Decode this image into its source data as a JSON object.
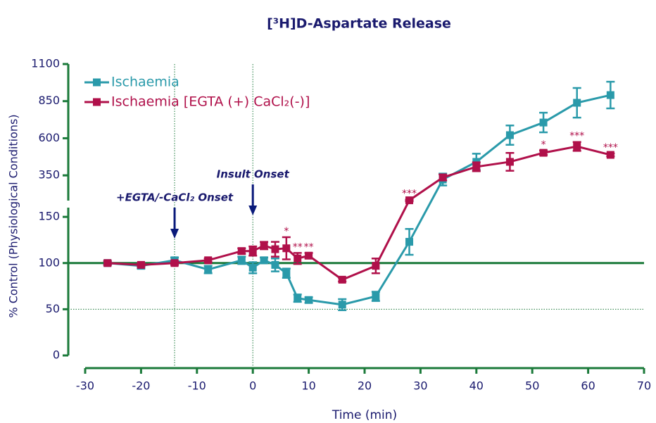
{
  "chart_data": {
    "type": "line",
    "title": "[³H]D-Aspartate Release",
    "xlabel": "Time (min)",
    "ylabel": "% Control (Physiological Conditions)",
    "x": [
      -26,
      -20,
      -14,
      -8,
      -2,
      0,
      2,
      4,
      6,
      8,
      10,
      16,
      22,
      28,
      34,
      40,
      46,
      52,
      58,
      64
    ],
    "xlim": [
      -30,
      70
    ],
    "xticks": [
      -30,
      -20,
      -10,
      0,
      10,
      20,
      30,
      40,
      50,
      60,
      70
    ],
    "ylim": [
      0,
      1100
    ],
    "ybreak": [
      160,
      180
    ],
    "yticks": [
      0,
      50,
      100,
      150,
      350,
      600,
      850,
      1100
    ],
    "legend": "upper left",
    "axis_color": "#1b7a3a",
    "vlines": [
      -14,
      0
    ],
    "hlines": [
      {
        "value": 100,
        "style": "solid"
      },
      {
        "value": 50,
        "style": "dotted"
      }
    ],
    "annotations": [
      {
        "text": "Insult Onset",
        "x": 0
      },
      {
        "text": "+EGTA/-CaCl₂ Onset",
        "x": -14
      }
    ],
    "series": [
      {
        "name": "Ischaemia",
        "color": "#2a9aaa",
        "values": [
          100,
          97,
          103,
          93,
          103,
          95,
          103,
          98,
          89,
          62,
          60,
          55,
          64,
          123,
          322,
          441,
          621,
          706,
          839,
          891
        ],
        "errors": [
          2,
          3,
          3,
          4,
          4,
          6,
          3,
          7,
          5,
          4,
          3,
          6,
          5,
          14,
          40,
          55,
          65,
          66,
          100,
          90
        ]
      },
      {
        "name": "Ischaemia [EGTA (+) CaCl₂(-)]",
        "color": "#b0104a",
        "values": [
          100,
          98,
          100,
          103,
          113,
          113,
          119,
          115,
          116,
          105,
          108,
          82,
          97,
          182,
          336,
          408,
          441,
          502,
          545,
          488
        ],
        "errors": [
          2,
          2,
          2,
          2,
          3,
          5,
          4,
          8,
          12,
          6,
          3,
          2,
          8,
          4,
          20,
          30,
          60,
          15,
          30,
          10
        ],
        "labels": [
          null,
          null,
          null,
          null,
          null,
          null,
          null,
          null,
          "*",
          "**",
          "**",
          null,
          null,
          "***",
          null,
          null,
          null,
          "*",
          "***",
          "***"
        ]
      }
    ]
  }
}
